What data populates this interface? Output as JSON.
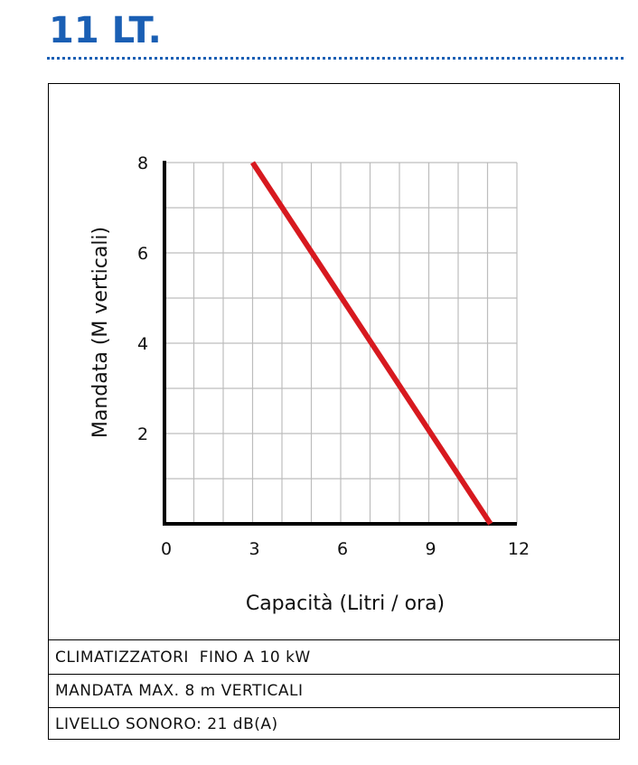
{
  "page": {
    "title": "11 LT."
  },
  "colors": {
    "title": "#1a5fb4",
    "line": "#d7191f",
    "grid": "#bdbdbd",
    "axis": "#000000"
  },
  "chart_data": {
    "type": "line",
    "title": "",
    "xlabel": "Capacità (Litri / ora)",
    "ylabel": "Mandata (M verticali)",
    "xlim": [
      0,
      12
    ],
    "ylim": [
      0,
      8
    ],
    "x_ticks": [
      "0",
      "3",
      "6",
      "9",
      "12"
    ],
    "y_ticks": [
      "8",
      "6",
      "4",
      "2"
    ],
    "grid": true,
    "series": [
      {
        "x": [
          3,
          11.1
        ],
        "y": [
          8,
          0
        ]
      }
    ]
  },
  "specs": [
    "CLIMATIZZATORI  FINO A 10 kW",
    "MANDATA MAX. 8 m VERTICALI",
    "LIVELLO SONORO: 21 dB(A)"
  ]
}
